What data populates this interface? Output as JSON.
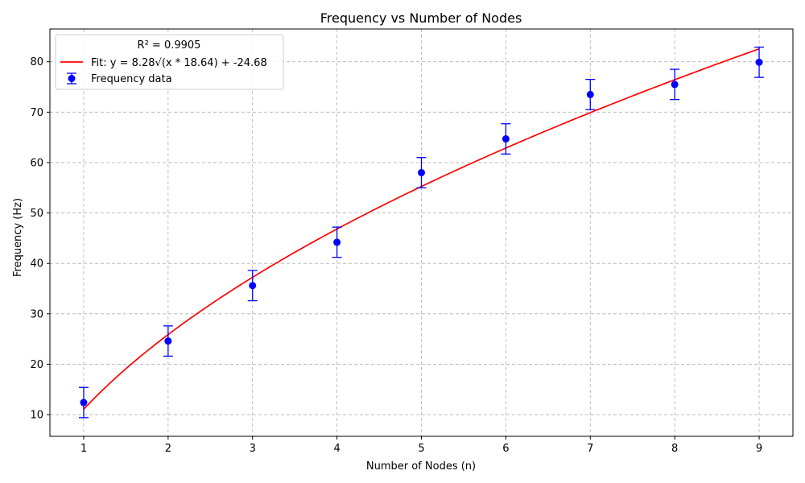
{
  "chart_data": {
    "type": "scatter",
    "title": "Frequency vs Number of Nodes",
    "xlabel": "Number of Nodes (n)",
    "ylabel": "Frequency (Hz)",
    "xlim": [
      0.6,
      9.4
    ],
    "ylim": [
      5.7,
      86.5
    ],
    "xticks": [
      1,
      2,
      3,
      4,
      5,
      6,
      7,
      8,
      9
    ],
    "yticks": [
      10,
      20,
      30,
      40,
      50,
      60,
      70,
      80
    ],
    "grid": true,
    "legend": {
      "placement": "top-left",
      "title": "R² = 0.9905",
      "entries": [
        "Fit: y = 8.28√(x * 18.64) + -24.68",
        "Frequency data"
      ]
    },
    "series": [
      {
        "name": "Frequency data",
        "kind": "errorbar",
        "color": "#0000ff",
        "x": [
          1,
          2,
          3,
          4,
          5,
          6,
          7,
          8,
          9
        ],
        "y": [
          12.4,
          24.6,
          35.6,
          44.2,
          58.0,
          64.7,
          73.5,
          75.5,
          79.9
        ],
        "yerr": [
          3.0,
          3.0,
          3.0,
          3.0,
          3.0,
          3.0,
          3.0,
          3.0,
          3.0
        ]
      },
      {
        "name": "Fit: y = 8.28√(x * 18.64) + -24.68",
        "kind": "curve",
        "color": "#ff0000",
        "coefficients": {
          "a": 8.28,
          "b": 18.64,
          "c": -24.68
        },
        "x_range": [
          1,
          9
        ]
      }
    ]
  }
}
